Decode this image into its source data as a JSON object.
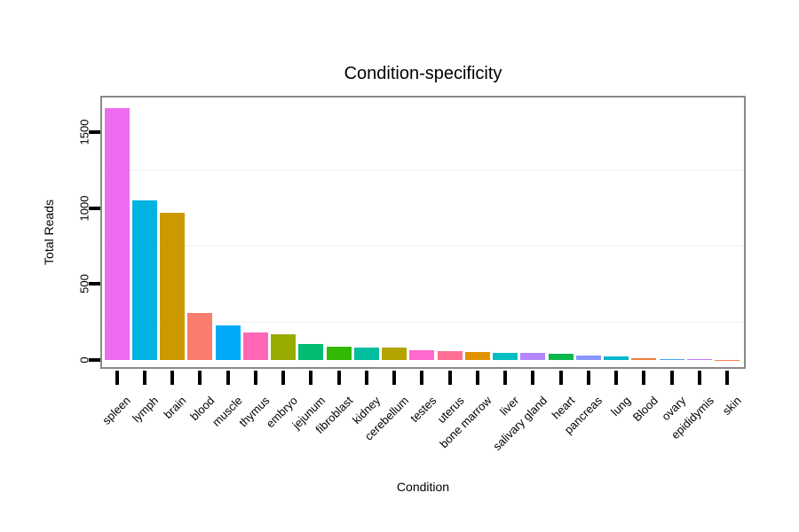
{
  "chart_data": {
    "type": "bar",
    "title": "Condition-specificity",
    "xlabel": "Condition",
    "ylabel": "Total Reads",
    "ylim": [
      0,
      1750
    ],
    "yticks": [
      0,
      500,
      1000,
      1500
    ],
    "minor_gridlines": [
      250,
      750,
      1250
    ],
    "grid": "faint horizontal minor gridlines only",
    "legend": "none",
    "categories": [
      "spleen",
      "lymph",
      "brain",
      "blood",
      "muscle",
      "thymus",
      "embryo",
      "jejunum",
      "fibroblast",
      "kidney",
      "cerebellum",
      "testes",
      "uterus",
      "bone marrow",
      "liver",
      "salivary gland",
      "heart",
      "pancreas",
      "lung",
      "Blood",
      "ovary",
      "epididymis",
      "skin"
    ],
    "values": [
      1655,
      1050,
      970,
      310,
      230,
      180,
      172,
      103,
      85,
      80,
      84,
      62,
      56,
      55,
      48,
      47,
      38,
      28,
      22,
      14,
      8,
      3,
      1
    ],
    "bar_colors": [
      "#ee6aee",
      "#00b3e3",
      "#cc9900",
      "#f87d6e",
      "#00aaf8",
      "#ff66b5",
      "#99ab00",
      "#00bd72",
      "#32b800",
      "#00bd9e",
      "#b5a400",
      "#ff68cc",
      "#ff6e93",
      "#e29200",
      "#00bec1",
      "#b385ff",
      "#0ab74c",
      "#8a96ff",
      "#00b5ca",
      "#ec7d3d",
      "#4ba3f7",
      "#c77cff",
      "#ff7f50"
    ]
  },
  "colors": {
    "panel_border": "#8a8a8a",
    "tick": "#000000",
    "text": "#000000",
    "minor_grid": "#f7f7f7",
    "background": "#ffffff"
  }
}
